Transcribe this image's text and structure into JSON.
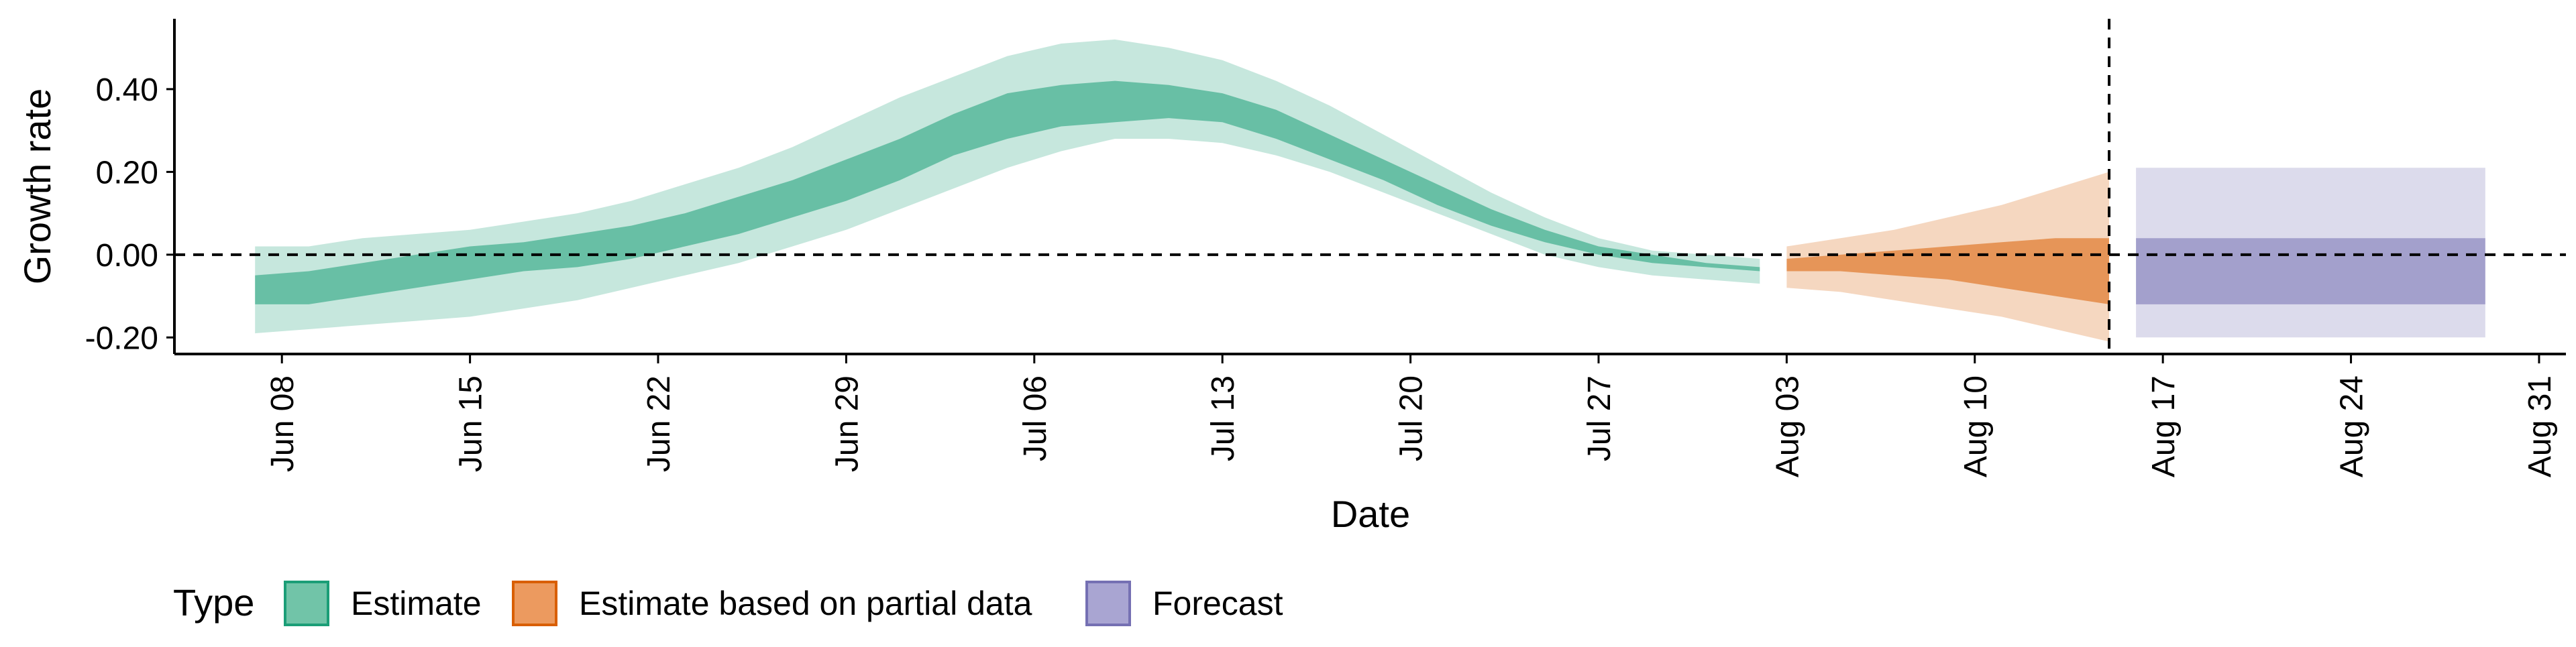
{
  "chart_data": {
    "type": "area",
    "xlabel": "Date",
    "ylabel": "Growth rate",
    "x_range": [
      "2020-06-04",
      "2020-09-01"
    ],
    "ylim": [
      -0.24,
      0.57
    ],
    "x_ticks": [
      "Jun 08",
      "Jun 15",
      "Jun 22",
      "Jun 29",
      "Jul 06",
      "Jul 13",
      "Jul 20",
      "Jul 27",
      "Aug 03",
      "Aug 10",
      "Aug 17",
      "Aug 24",
      "Aug 31"
    ],
    "y_ticks": [
      "-0.20",
      "0.00",
      "0.20",
      "0.40"
    ],
    "y_tick_values": [
      -0.2,
      0,
      0.2,
      0.4
    ],
    "reference_lines": {
      "horizontal_y": 0,
      "vertical_date": "2020-08-15"
    },
    "grid": false,
    "legend": {
      "title": "Type",
      "position": "bottom-left",
      "entries": [
        {
          "label": "Estimate",
          "fill": "#71c4a8",
          "stroke": "#1b9e77"
        },
        {
          "label": "Estimate based on partial data",
          "fill": "#ec9a5f",
          "stroke": "#d95f02"
        },
        {
          "label": "Forecast",
          "fill": "#a9a5d2",
          "stroke": "#7570b3"
        }
      ]
    },
    "series": [
      {
        "name": "Estimate",
        "color": "#1b9e77",
        "dates": [
          "2020-06-07",
          "2020-06-09",
          "2020-06-11",
          "2020-06-13",
          "2020-06-15",
          "2020-06-17",
          "2020-06-19",
          "2020-06-21",
          "2020-06-23",
          "2020-06-25",
          "2020-06-27",
          "2020-06-29",
          "2020-07-01",
          "2020-07-03",
          "2020-07-05",
          "2020-07-07",
          "2020-07-09",
          "2020-07-11",
          "2020-07-13",
          "2020-07-15",
          "2020-07-17",
          "2020-07-19",
          "2020-07-21",
          "2020-07-23",
          "2020-07-25",
          "2020-07-27",
          "2020-07-29",
          "2020-07-31",
          "2020-08-02"
        ],
        "lower90": [
          -0.19,
          -0.18,
          -0.17,
          -0.16,
          -0.15,
          -0.13,
          -0.11,
          -0.08,
          -0.05,
          -0.02,
          0.02,
          0.06,
          0.11,
          0.16,
          0.21,
          0.25,
          0.28,
          0.28,
          0.27,
          0.24,
          0.2,
          0.15,
          0.1,
          0.05,
          0.0,
          -0.03,
          -0.05,
          -0.06,
          -0.07
        ],
        "lower50": [
          -0.12,
          -0.12,
          -0.1,
          -0.08,
          -0.06,
          -0.04,
          -0.03,
          -0.01,
          0.02,
          0.05,
          0.09,
          0.13,
          0.18,
          0.24,
          0.28,
          0.31,
          0.32,
          0.33,
          0.32,
          0.28,
          0.23,
          0.18,
          0.12,
          0.07,
          0.03,
          0.0,
          -0.02,
          -0.03,
          -0.04
        ],
        "upper50": [
          -0.05,
          -0.04,
          -0.02,
          0.0,
          0.02,
          0.03,
          0.05,
          0.07,
          0.1,
          0.14,
          0.18,
          0.23,
          0.28,
          0.34,
          0.39,
          0.41,
          0.42,
          0.41,
          0.39,
          0.35,
          0.29,
          0.23,
          0.17,
          0.11,
          0.06,
          0.02,
          -0.0,
          -0.02,
          -0.03
        ],
        "upper90": [
          0.02,
          0.02,
          0.04,
          0.05,
          0.06,
          0.08,
          0.1,
          0.13,
          0.17,
          0.21,
          0.26,
          0.32,
          0.38,
          0.43,
          0.48,
          0.51,
          0.52,
          0.5,
          0.47,
          0.42,
          0.36,
          0.29,
          0.22,
          0.15,
          0.09,
          0.04,
          0.01,
          -0.0,
          -0.01
        ]
      },
      {
        "name": "Estimate based on partial data",
        "color": "#d95f02",
        "dates": [
          "2020-08-03",
          "2020-08-05",
          "2020-08-07",
          "2020-08-09",
          "2020-08-11",
          "2020-08-13",
          "2020-08-15"
        ],
        "lower90": [
          -0.08,
          -0.09,
          -0.11,
          -0.13,
          -0.15,
          -0.18,
          -0.21
        ],
        "lower50": [
          -0.04,
          -0.04,
          -0.05,
          -0.06,
          -0.08,
          -0.1,
          -0.12
        ],
        "upper50": [
          -0.01,
          0.0,
          0.01,
          0.02,
          0.03,
          0.04,
          0.04
        ],
        "upper90": [
          0.02,
          0.04,
          0.06,
          0.09,
          0.12,
          0.16,
          0.2
        ]
      },
      {
        "name": "Forecast",
        "color": "#7570b3",
        "dates": [
          "2020-08-16",
          "2020-08-29"
        ],
        "lower90": [
          -0.2,
          -0.2
        ],
        "lower50": [
          -0.12,
          -0.12
        ],
        "upper50": [
          0.04,
          0.04
        ],
        "upper90": [
          0.21,
          0.21
        ]
      }
    ]
  }
}
